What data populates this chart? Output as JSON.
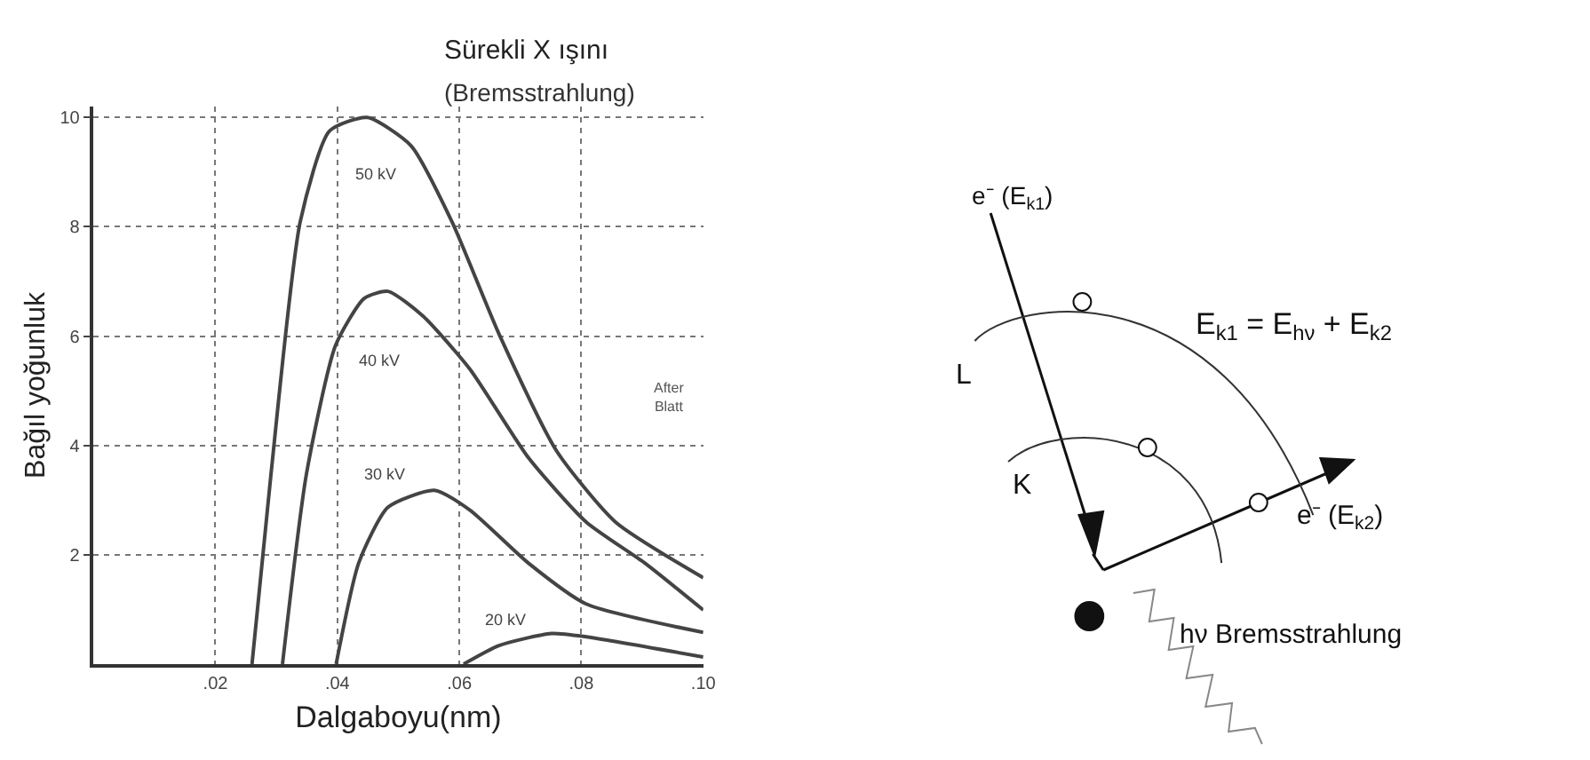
{
  "chart_data": [
    {
      "type": "line",
      "title": "Sürekli X ışını",
      "subtitle": "(Bremsstrahlung)",
      "xlabel": "Dalgaboyu(nm)",
      "ylabel": "Bağıl yoğunluk",
      "xlim": [
        0,
        0.1
      ],
      "ylim": [
        0,
        10.2
      ],
      "xticks": [
        {
          "value": 0.02,
          "label": ".02"
        },
        {
          "value": 0.04,
          "label": ".04"
        },
        {
          "value": 0.06,
          "label": ".06"
        },
        {
          "value": 0.08,
          "label": ".08"
        },
        {
          "value": 0.1,
          "label": ".10"
        }
      ],
      "yticks": [
        2,
        4,
        6,
        8,
        10
      ],
      "grid": true,
      "line_style": "solid",
      "marker": "none",
      "series": [
        {
          "name": "50 kV",
          "color": "#444444",
          "x": [
            0.026,
            0.0291,
            0.0339,
            0.0387,
            0.0449,
            0.0521,
            0.0588,
            0.0665,
            0.076,
            0.0856,
            0.1
          ],
          "values": [
            0,
            3.46,
            8.09,
            9.75,
            10,
            9.48,
            8.09,
            6.04,
            3.89,
            2.6,
            1.58
          ]
        },
        {
          "name": "40 kV",
          "color": "#444444",
          "x": [
            0.031,
            0.0349,
            0.0397,
            0.0444,
            0.0483,
            0.054,
            0.0617,
            0.0713,
            0.0808,
            0.0904,
            0.1
          ],
          "values": [
            0,
            3.46,
            5.83,
            6.69,
            6.82,
            6.37,
            5.4,
            3.78,
            2.6,
            1.85,
            0.99
          ]
        },
        {
          "name": "30 kV",
          "color": "#444444",
          "x": [
            0.0398,
            0.0435,
            0.0483,
            0.0559,
            0.0617,
            0.0713,
            0.0808,
            0.1
          ],
          "values": [
            0,
            1.85,
            2.87,
            3.18,
            2.82,
            1.85,
            1.1,
            0.58
          ]
        },
        {
          "name": "20 kV",
          "color": "#444444",
          "x": [
            0.0607,
            0.0665,
            0.0751,
            0.0808,
            0.1
          ],
          "values": [
            0,
            0.34,
            0.56,
            0.5,
            0.13
          ]
        }
      ],
      "annotations": [
        "After\nBlatt"
      ]
    },
    {
      "type": "other",
      "annotations": [
        "e⁻ (E$_{k1}$)",
        "L",
        "K",
        "E$_{k1}$ = E$_{hν}$ + E$_{k2}$",
        "e⁻ (E$_{k2}$)",
        "hν Bremsstrahlung"
      ]
    }
  ]
}
